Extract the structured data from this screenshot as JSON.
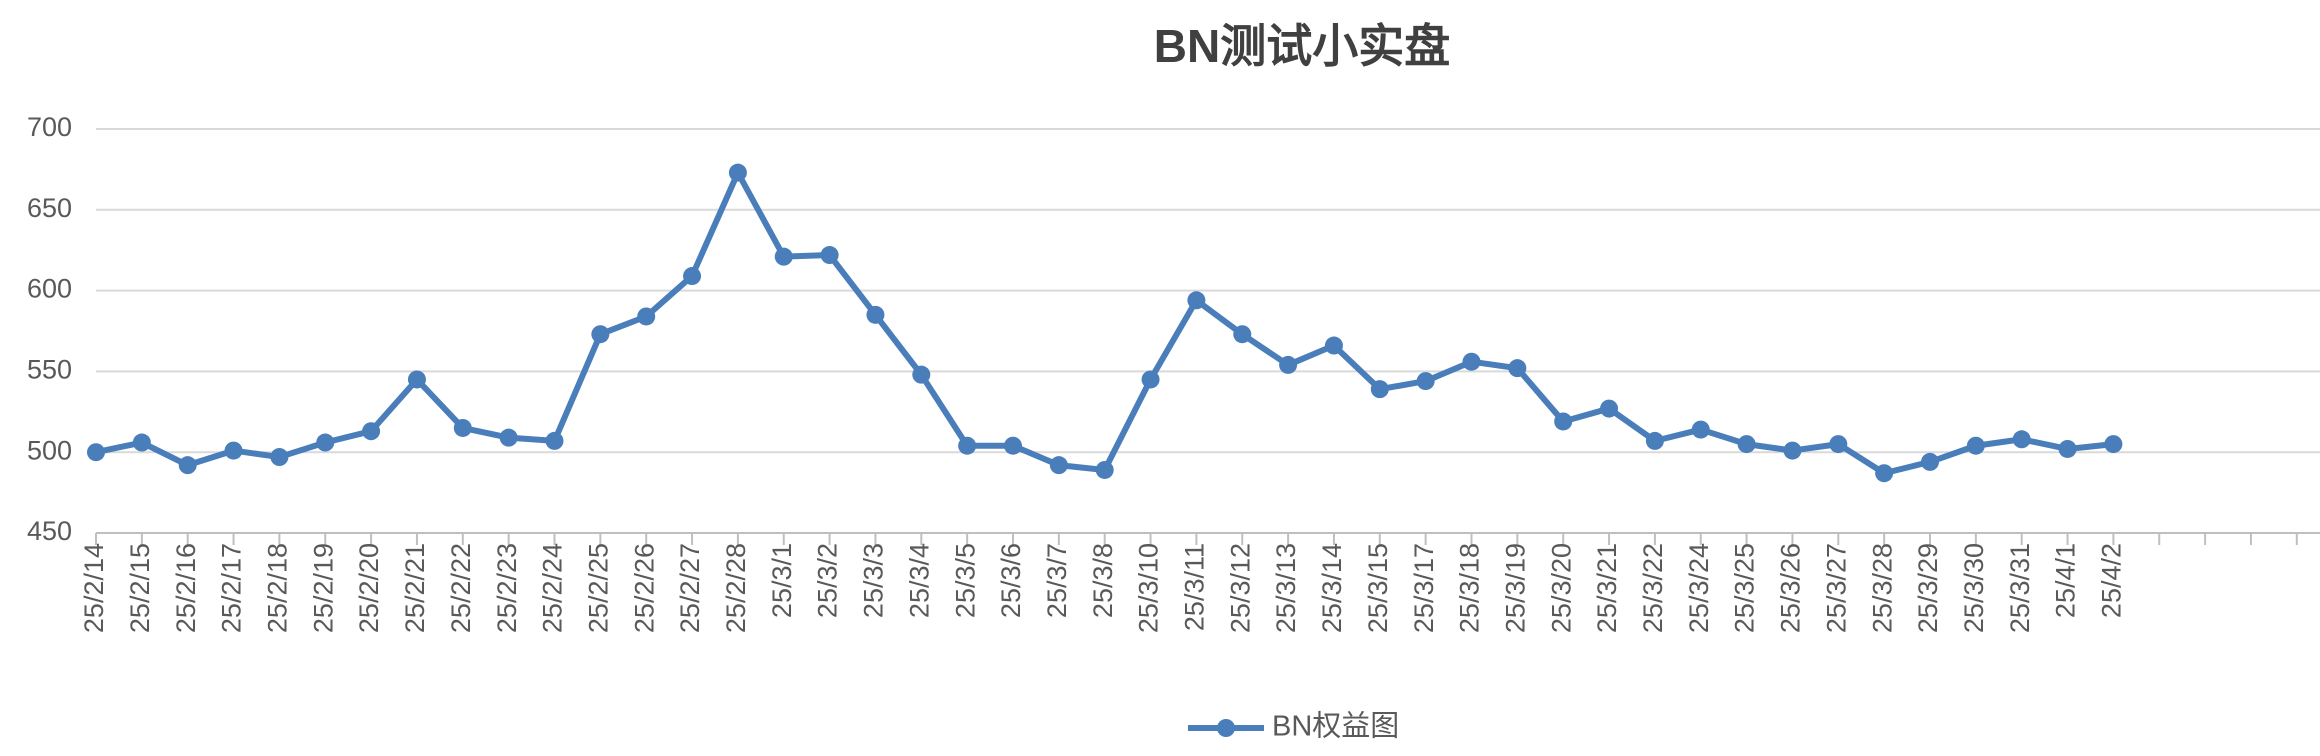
{
  "chart_data": {
    "type": "line",
    "title": "BN测试小实盘",
    "categories": [
      "25/2/14",
      "25/2/15",
      "25/2/16",
      "25/2/17",
      "25/2/18",
      "25/2/19",
      "25/2/20",
      "25/2/21",
      "25/2/22",
      "25/2/23",
      "25/2/24",
      "25/2/25",
      "25/2/26",
      "25/2/27",
      "25/2/28",
      "25/3/1",
      "25/3/2",
      "25/3/3",
      "25/3/4",
      "25/3/5",
      "25/3/6",
      "25/3/7",
      "25/3/8",
      "25/3/10",
      "25/3/11",
      "25/3/12",
      "25/3/13",
      "25/3/14",
      "25/3/15",
      "25/3/17",
      "25/3/18",
      "25/3/19",
      "25/3/20",
      "25/3/21",
      "25/3/22",
      "25/3/24",
      "25/3/25",
      "25/3/26",
      "25/3/27",
      "25/3/28",
      "25/3/29",
      "25/3/30",
      "25/3/31",
      "25/4/1",
      "25/4/2",
      null,
      null,
      null,
      null
    ],
    "series": [
      {
        "name": "BN权益图",
        "color": "#4a7ebb",
        "values": [
          500,
          506,
          492,
          501,
          497,
          506,
          513,
          545,
          515,
          509,
          507,
          573,
          584,
          609,
          673,
          621,
          622,
          585,
          548,
          504,
          504,
          492,
          489,
          545,
          594,
          573,
          554,
          566,
          539,
          544,
          556,
          552,
          519,
          527,
          507,
          514,
          505,
          501,
          505,
          487,
          494,
          504,
          508,
          502,
          505,
          null,
          null,
          null,
          null
        ]
      }
    ],
    "ylim": [
      450,
      700
    ],
    "yticks": [
      450,
      500,
      550,
      600,
      650,
      700
    ],
    "grid": true,
    "legend": "bottom"
  }
}
